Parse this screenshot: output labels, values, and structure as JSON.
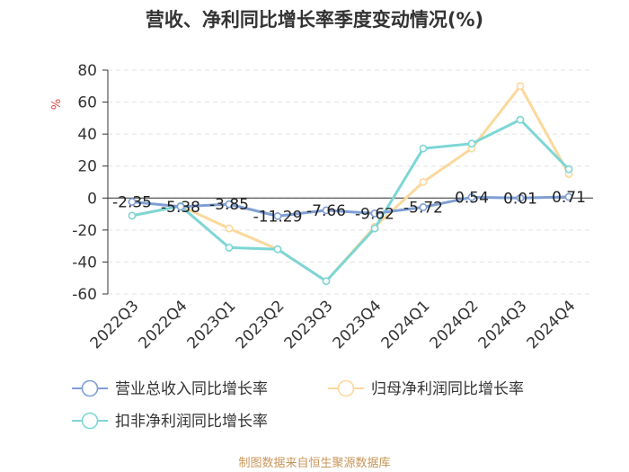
{
  "title": "营收、净利同比增长率季度变动情况(%)",
  "unit": "%",
  "source": "制图数据来自恒生聚源数据库",
  "chart_data": {
    "type": "line",
    "categories": [
      "2022Q3",
      "2022Q4",
      "2023Q1",
      "2023Q2",
      "2023Q3",
      "2023Q4",
      "2024Q1",
      "2024Q2",
      "2024Q3",
      "2024Q4"
    ],
    "ylim": [
      -60,
      80
    ],
    "yticks": [
      80,
      60,
      40,
      20,
      0,
      -20,
      -40,
      -60
    ],
    "grid": true,
    "legend_position": "bottom",
    "series": [
      {
        "name": "营业总收入同比增长率",
        "color": "#7f9fd4",
        "values": [
          -2.35,
          -5.38,
          -3.85,
          -11.29,
          -7.66,
          -9.62,
          -5.72,
          0.54,
          0.01,
          0.71
        ],
        "labels": [
          "-2.35",
          "-5.38",
          "-3.85",
          "-11.29",
          "-7.66",
          "-9.62",
          "-5.72",
          "0.54",
          "0.01",
          "0.71"
        ]
      },
      {
        "name": "归母净利润同比增长率",
        "color": "#fbd89c",
        "values": [
          -11,
          -5,
          -19,
          -32,
          -52,
          -18,
          10,
          31,
          70,
          15
        ]
      },
      {
        "name": "扣非净利润同比增长率",
        "color": "#7dd6d6",
        "values": [
          -11,
          -5,
          -31,
          -32,
          -52,
          -19,
          31,
          34,
          49,
          18
        ]
      }
    ]
  }
}
